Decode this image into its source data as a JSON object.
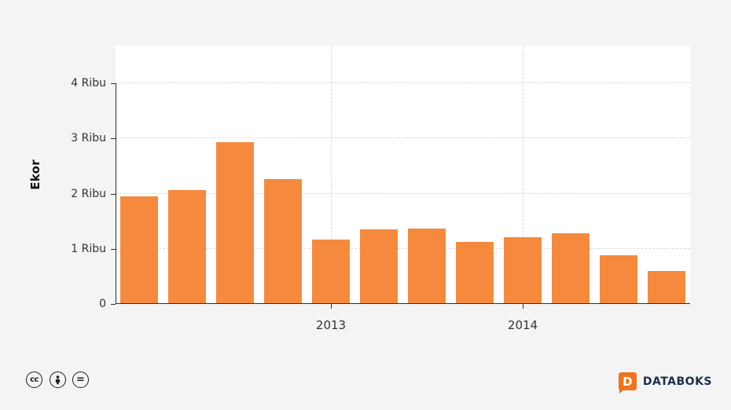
{
  "chart": {
    "y_axis_title": "Ekor"
  },
  "chart_data": {
    "type": "bar",
    "title": "",
    "xlabel": "",
    "ylabel": "Ekor",
    "unit": "Ribu",
    "ylim": [
      0,
      4
    ],
    "grid": true,
    "legend": "none",
    "bar_color": "#F58A3E",
    "values": [
      1.95,
      2.06,
      2.93,
      2.27,
      1.17,
      1.35,
      1.37,
      1.13,
      1.21,
      1.28,
      0.88,
      0.6
    ],
    "y_ticks": [
      {
        "label": "4 Ribu",
        "value": 4
      },
      {
        "label": "3 Ribu",
        "value": 3
      },
      {
        "label": "2 Ribu",
        "value": 2
      },
      {
        "label": "1 Ribu",
        "value": 1
      },
      {
        "label": "0",
        "value": 0
      }
    ],
    "x_tick_labels": [
      {
        "label": "2013",
        "index": 4
      },
      {
        "label": "2014",
        "index": 8
      }
    ]
  },
  "footer": {
    "license_icons": [
      {
        "name": "cc-icon",
        "glyph": "cc"
      },
      {
        "name": "attribution-icon",
        "glyph": "person"
      },
      {
        "name": "equal-icon",
        "glyph": "="
      }
    ],
    "brand": "DATABOKS",
    "brand_icon_letter": "D"
  },
  "colors": {
    "bar": "#F58A3E",
    "background": "#F4F4F4",
    "plot_background": "#FFFFFF",
    "grid": "#D9D9D9",
    "axis": "#2E2E2E",
    "brand_orange": "#EF741E",
    "brand_text": "#17304A"
  }
}
